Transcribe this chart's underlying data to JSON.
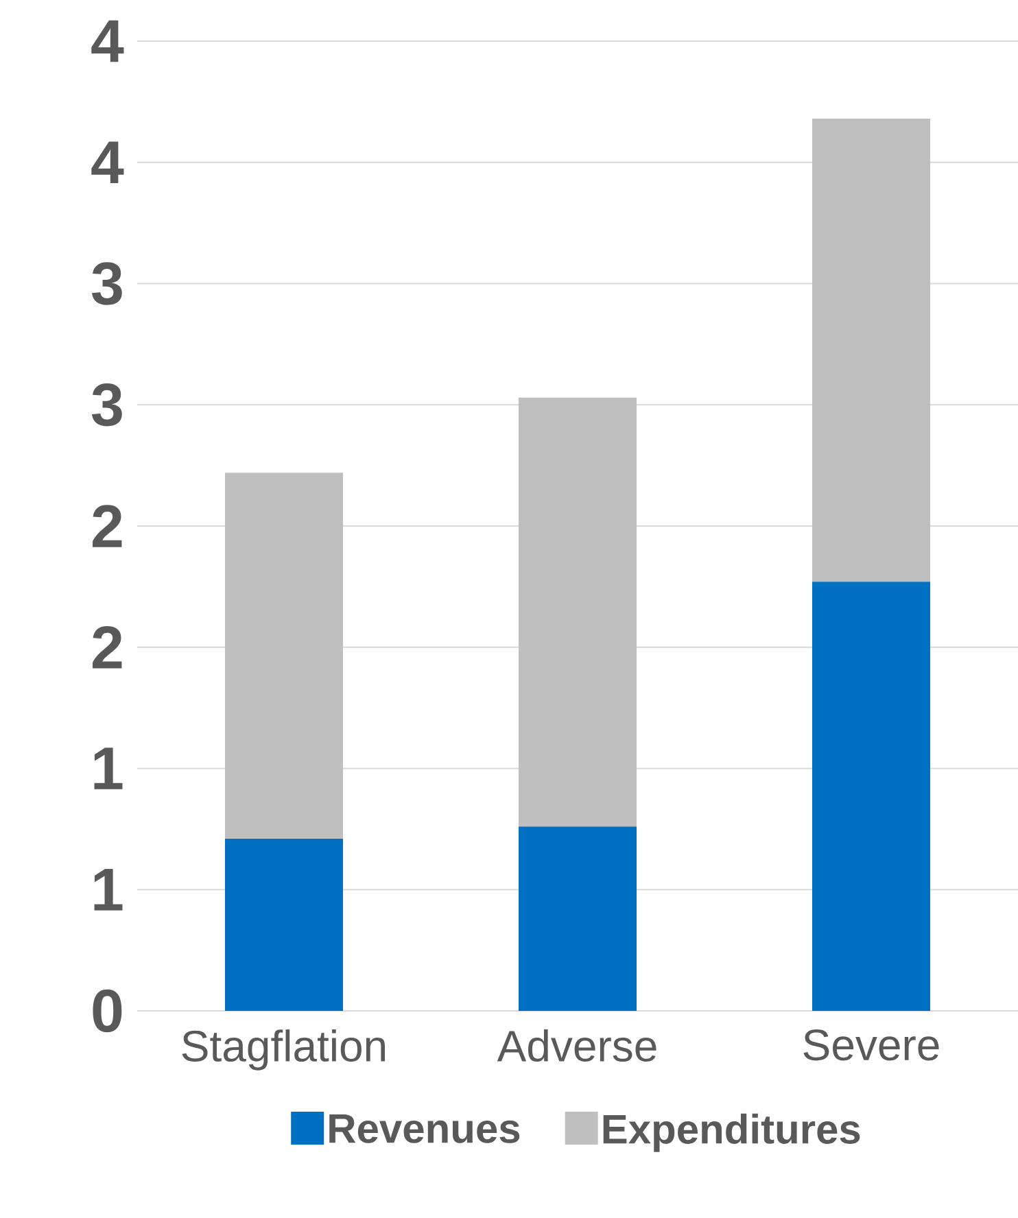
{
  "chart_data": {
    "type": "bar",
    "stacked": true,
    "categories": [
      "Stagflation",
      "Adverse",
      "Severe"
    ],
    "series": [
      {
        "name": "Revenues",
        "color": "#0070c0",
        "values": [
          0.71,
          0.76,
          1.77
        ]
      },
      {
        "name": "Expenditures",
        "color": "#bfbfbf",
        "values": [
          1.51,
          1.77,
          1.91
        ]
      }
    ],
    "ylim": [
      0,
      4
    ],
    "yticks": [
      0,
      {
        "value": 0.5,
        "label": "1"
      },
      {
        "value": 1,
        "label": "1"
      },
      {
        "value": 1.5,
        "label": "2"
      },
      {
        "value": 2,
        "label": "2"
      },
      {
        "value": 2.5,
        "label": "3"
      },
      {
        "value": 3,
        "label": "3"
      },
      {
        "value": 3.5,
        "label": "4"
      },
      {
        "value": 4,
        "label": "4"
      }
    ],
    "grid": "y",
    "legend": "bottom"
  }
}
